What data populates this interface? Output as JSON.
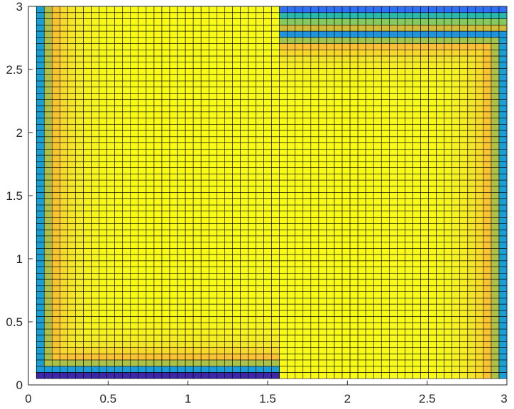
{
  "chart_data": {
    "type": "heatmap",
    "title": "",
    "xlabel": "",
    "ylabel": "",
    "xlim": [
      0,
      3
    ],
    "ylim": [
      0,
      3
    ],
    "x_ticks": [
      0,
      0.5,
      1,
      1.5,
      2,
      2.5,
      3
    ],
    "x_tick_labels": [
      "0",
      "0.5",
      "1",
      "1.5",
      "2",
      "2.5",
      "3"
    ],
    "y_ticks": [
      0,
      0.5,
      1,
      1.5,
      2,
      2.5,
      3
    ],
    "y_tick_labels": [
      "0",
      "0.5",
      "1",
      "1.5",
      "2",
      "2.5",
      "3"
    ],
    "grid": false,
    "colormap": "parula",
    "cell_edge_color": "#000000",
    "mesh": {
      "x_range": [
        0.05,
        3.0
      ],
      "y_range": [
        0.05,
        3.0
      ],
      "columns": 60,
      "rows": 60
    },
    "regions": [
      {
        "name": "left block",
        "x_range": [
          0.05,
          1.55
        ],
        "y_range": [
          0.1,
          3.0
        ],
        "interior_level": "max"
      },
      {
        "name": "right block",
        "x_range": [
          1.55,
          3.0
        ],
        "y_range": [
          0.05,
          2.8
        ],
        "interior_level": "max"
      }
    ],
    "color_scale": {
      "stops": [
        "#3e26a8",
        "#2f6ffa",
        "#17a2d5",
        "#2fbf9f",
        "#7ccb61",
        "#c4bd3a",
        "#fcb937",
        "#fad32a",
        "#f5e626",
        "#f9fb15"
      ]
    }
  }
}
